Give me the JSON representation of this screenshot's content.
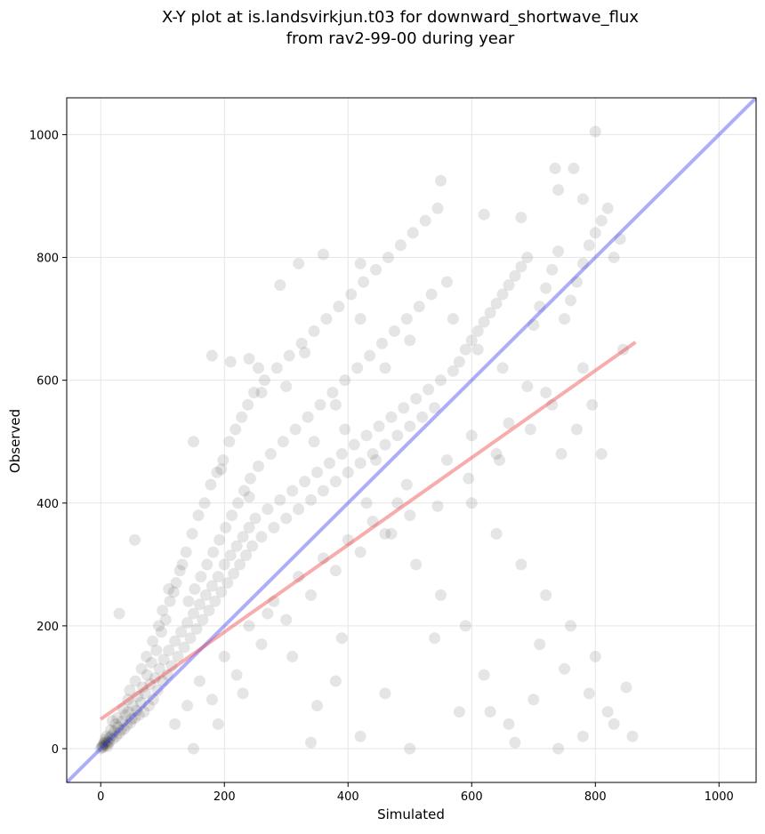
{
  "chart_data": {
    "type": "scatter",
    "title": "X-Y plot at is.landsvirkjun.t03 for downward_shortwave_flux",
    "subtitle": "from rav2-99-00 during year",
    "xlabel": "Simulated",
    "ylabel": "Observed",
    "xlim": [
      -55,
      1060
    ],
    "ylim": [
      -55,
      1060
    ],
    "xticks": [
      0,
      200,
      400,
      600,
      800,
      1000
    ],
    "yticks": [
      0,
      200,
      400,
      600,
      800,
      1000
    ],
    "grid": true,
    "colors": {
      "points": "#000000",
      "one_to_one": "#3333ee",
      "fit": "#ee3333"
    },
    "one_to_one_line": {
      "x": [
        -55,
        1060
      ],
      "y": [
        -55,
        1060
      ]
    },
    "regression_line": {
      "x": [
        0,
        865
      ],
      "y": [
        48,
        662
      ]
    },
    "points": [
      [
        0,
        0
      ],
      [
        2,
        3
      ],
      [
        3,
        5
      ],
      [
        5,
        8
      ],
      [
        4,
        2
      ],
      [
        6,
        10
      ],
      [
        8,
        6
      ],
      [
        10,
        12
      ],
      [
        12,
        9
      ],
      [
        7,
        15
      ],
      [
        15,
        18
      ],
      [
        14,
        11
      ],
      [
        18,
        22
      ],
      [
        20,
        16
      ],
      [
        9,
        20
      ],
      [
        22,
        28
      ],
      [
        25,
        20
      ],
      [
        11,
        4
      ],
      [
        16,
        30
      ],
      [
        28,
        35
      ],
      [
        30,
        25
      ],
      [
        24,
        40
      ],
      [
        33,
        30
      ],
      [
        35,
        45
      ],
      [
        38,
        32
      ],
      [
        27,
        50
      ],
      [
        40,
        55
      ],
      [
        42,
        38
      ],
      [
        19,
        45
      ],
      [
        45,
        60
      ],
      [
        48,
        42
      ],
      [
        36,
        65
      ],
      [
        50,
        48
      ],
      [
        52,
        70
      ],
      [
        55,
        50
      ],
      [
        44,
        80
      ],
      [
        58,
        62
      ],
      [
        60,
        85
      ],
      [
        62,
        55
      ],
      [
        47,
        95
      ],
      [
        65,
        75
      ],
      [
        68,
        100
      ],
      [
        70,
        60
      ],
      [
        56,
        110
      ],
      [
        72,
        90
      ],
      [
        75,
        120
      ],
      [
        78,
        70
      ],
      [
        66,
        130
      ],
      [
        80,
        105
      ],
      [
        82,
        140
      ],
      [
        85,
        80
      ],
      [
        74,
        150
      ],
      [
        88,
        115
      ],
      [
        90,
        160
      ],
      [
        92,
        95
      ],
      [
        84,
        175
      ],
      [
        95,
        130
      ],
      [
        98,
        190
      ],
      [
        100,
        110
      ],
      [
        94,
        200
      ],
      [
        102,
        145
      ],
      [
        105,
        210
      ],
      [
        108,
        120
      ],
      [
        100,
        225
      ],
      [
        110,
        160
      ],
      [
        112,
        240
      ],
      [
        115,
        135
      ],
      [
        118,
        255
      ],
      [
        120,
        175
      ],
      [
        122,
        270
      ],
      [
        125,
        150
      ],
      [
        128,
        290
      ],
      [
        130,
        190
      ],
      [
        132,
        300
      ],
      [
        135,
        165
      ],
      [
        138,
        320
      ],
      [
        140,
        205
      ],
      [
        142,
        240
      ],
      [
        145,
        180
      ],
      [
        148,
        350
      ],
      [
        150,
        220
      ],
      [
        152,
        260
      ],
      [
        155,
        195
      ],
      [
        158,
        380
      ],
      [
        160,
        235
      ],
      [
        162,
        280
      ],
      [
        165,
        210
      ],
      [
        168,
        400
      ],
      [
        170,
        250
      ],
      [
        172,
        300
      ],
      [
        175,
        225
      ],
      [
        178,
        430
      ],
      [
        180,
        265
      ],
      [
        182,
        320
      ],
      [
        185,
        240
      ],
      [
        188,
        450
      ],
      [
        190,
        280
      ],
      [
        192,
        340
      ],
      [
        195,
        255
      ],
      [
        198,
        470
      ],
      [
        200,
        300
      ],
      [
        202,
        360
      ],
      [
        205,
        270
      ],
      [
        208,
        500
      ],
      [
        210,
        315
      ],
      [
        212,
        380
      ],
      [
        215,
        285
      ],
      [
        218,
        520
      ],
      [
        220,
        330
      ],
      [
        222,
        400
      ],
      [
        225,
        300
      ],
      [
        228,
        540
      ],
      [
        230,
        345
      ],
      [
        232,
        420
      ],
      [
        235,
        315
      ],
      [
        238,
        560
      ],
      [
        240,
        360
      ],
      [
        242,
        440
      ],
      [
        245,
        330
      ],
      [
        248,
        580
      ],
      [
        250,
        375
      ],
      [
        255,
        460
      ],
      [
        260,
        345
      ],
      [
        265,
        600
      ],
      [
        270,
        390
      ],
      [
        275,
        480
      ],
      [
        280,
        360
      ],
      [
        285,
        620
      ],
      [
        290,
        405
      ],
      [
        295,
        500
      ],
      [
        300,
        375
      ],
      [
        305,
        640
      ],
      [
        310,
        420
      ],
      [
        315,
        520
      ],
      [
        320,
        390
      ],
      [
        325,
        660
      ],
      [
        330,
        435
      ],
      [
        335,
        540
      ],
      [
        340,
        405
      ],
      [
        345,
        680
      ],
      [
        350,
        450
      ],
      [
        355,
        560
      ],
      [
        360,
        420
      ],
      [
        365,
        700
      ],
      [
        370,
        465
      ],
      [
        375,
        580
      ],
      [
        380,
        435
      ],
      [
        385,
        720
      ],
      [
        390,
        480
      ],
      [
        395,
        600
      ],
      [
        400,
        450
      ],
      [
        405,
        740
      ],
      [
        410,
        495
      ],
      [
        415,
        620
      ],
      [
        420,
        465
      ],
      [
        425,
        760
      ],
      [
        430,
        510
      ],
      [
        435,
        640
      ],
      [
        440,
        480
      ],
      [
        445,
        780
      ],
      [
        450,
        525
      ],
      [
        455,
        660
      ],
      [
        460,
        495
      ],
      [
        465,
        800
      ],
      [
        470,
        540
      ],
      [
        475,
        680
      ],
      [
        480,
        510
      ],
      [
        485,
        820
      ],
      [
        490,
        555
      ],
      [
        495,
        700
      ],
      [
        500,
        525
      ],
      [
        505,
        840
      ],
      [
        510,
        570
      ],
      [
        515,
        720
      ],
      [
        520,
        540
      ],
      [
        525,
        860
      ],
      [
        530,
        585
      ],
      [
        535,
        740
      ],
      [
        540,
        555
      ],
      [
        545,
        880
      ],
      [
        550,
        600
      ],
      [
        560,
        760
      ],
      [
        570,
        615
      ],
      [
        580,
        630
      ],
      [
        590,
        650
      ],
      [
        600,
        665
      ],
      [
        610,
        680
      ],
      [
        620,
        695
      ],
      [
        630,
        710
      ],
      [
        640,
        725
      ],
      [
        650,
        740
      ],
      [
        660,
        755
      ],
      [
        670,
        770
      ],
      [
        680,
        785
      ],
      [
        690,
        800
      ],
      [
        700,
        690
      ],
      [
        710,
        720
      ],
      [
        720,
        750
      ],
      [
        730,
        780
      ],
      [
        740,
        810
      ],
      [
        750,
        700
      ],
      [
        760,
        730
      ],
      [
        770,
        760
      ],
      [
        780,
        790
      ],
      [
        790,
        820
      ],
      [
        800,
        840
      ],
      [
        810,
        860
      ],
      [
        820,
        880
      ],
      [
        830,
        800
      ],
      [
        840,
        830
      ],
      [
        320,
        790
      ],
      [
        360,
        805
      ],
      [
        420,
        790
      ],
      [
        290,
        755
      ],
      [
        550,
        925
      ],
      [
        735,
        945
      ],
      [
        765,
        945
      ],
      [
        800,
        1005
      ],
      [
        620,
        870
      ],
      [
        680,
        865
      ],
      [
        740,
        910
      ],
      [
        780,
        895
      ],
      [
        180,
        640
      ],
      [
        210,
        630
      ],
      [
        240,
        635
      ],
      [
        255,
        620
      ],
      [
        260,
        580
      ],
      [
        330,
        645
      ],
      [
        500,
        665
      ],
      [
        420,
        700
      ],
      [
        460,
        620
      ],
      [
        380,
        560
      ],
      [
        600,
        400
      ],
      [
        640,
        350
      ],
      [
        680,
        300
      ],
      [
        720,
        250
      ],
      [
        760,
        200
      ],
      [
        800,
        150
      ],
      [
        850,
        100
      ],
      [
        820,
        60
      ],
      [
        780,
        20
      ],
      [
        740,
        0
      ],
      [
        700,
        80
      ],
      [
        660,
        40
      ],
      [
        620,
        120
      ],
      [
        580,
        60
      ],
      [
        540,
        180
      ],
      [
        500,
        0
      ],
      [
        460,
        90
      ],
      [
        420,
        20
      ],
      [
        380,
        110
      ],
      [
        340,
        10
      ],
      [
        860,
        20
      ],
      [
        830,
        40
      ],
      [
        790,
        90
      ],
      [
        750,
        130
      ],
      [
        710,
        170
      ],
      [
        670,
        10
      ],
      [
        630,
        60
      ],
      [
        590,
        200
      ],
      [
        550,
        250
      ],
      [
        510,
        300
      ],
      [
        470,
        350
      ],
      [
        430,
        400
      ],
      [
        390,
        180
      ],
      [
        350,
        70
      ],
      [
        310,
        150
      ],
      [
        270,
        220
      ],
      [
        230,
        90
      ],
      [
        190,
        40
      ],
      [
        150,
        0
      ],
      [
        110,
        260
      ],
      [
        30,
        220
      ],
      [
        55,
        340
      ],
      [
        150,
        500
      ],
      [
        195,
        455
      ],
      [
        240,
        410
      ],
      [
        300,
        590
      ],
      [
        345,
        500
      ],
      [
        395,
        520
      ],
      [
        445,
        470
      ],
      [
        495,
        430
      ],
      [
        545,
        395
      ],
      [
        595,
        440
      ],
      [
        645,
        470
      ],
      [
        695,
        520
      ],
      [
        745,
        480
      ],
      [
        795,
        560
      ],
      [
        845,
        650
      ],
      [
        780,
        620
      ],
      [
        720,
        580
      ],
      [
        660,
        530
      ],
      [
        570,
        700
      ],
      [
        610,
        650
      ],
      [
        650,
        620
      ],
      [
        690,
        590
      ],
      [
        730,
        560
      ],
      [
        770,
        520
      ],
      [
        810,
        480
      ],
      [
        560,
        470
      ],
      [
        600,
        510
      ],
      [
        640,
        480
      ],
      [
        120,
        40
      ],
      [
        140,
        70
      ],
      [
        160,
        110
      ],
      [
        180,
        80
      ],
      [
        200,
        150
      ],
      [
        220,
        120
      ],
      [
        240,
        200
      ],
      [
        260,
        170
      ],
      [
        280,
        240
      ],
      [
        300,
        210
      ],
      [
        320,
        280
      ],
      [
        340,
        250
      ],
      [
        360,
        310
      ],
      [
        380,
        290
      ],
      [
        400,
        340
      ],
      [
        420,
        320
      ],
      [
        440,
        370
      ],
      [
        460,
        350
      ],
      [
        480,
        400
      ],
      [
        500,
        380
      ]
    ]
  }
}
